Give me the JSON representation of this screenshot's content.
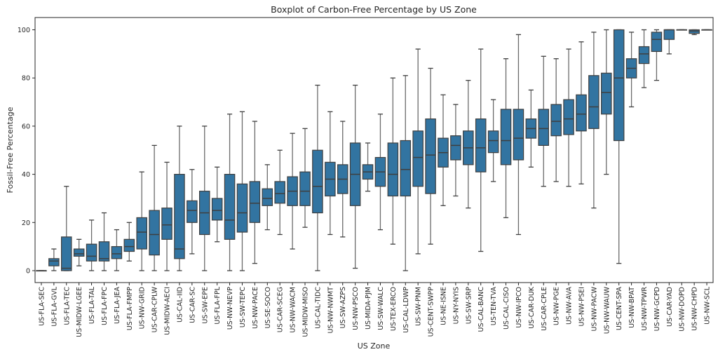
{
  "chart_data": {
    "type": "boxplot",
    "title": "Boxplot of Carbon-Free Percentage by US Zone",
    "xlabel": "US Zone",
    "ylabel": "Fossil-Free Percentage",
    "ylim": [
      -5,
      105
    ],
    "yticks": [
      0,
      20,
      40,
      60,
      80,
      100
    ],
    "grid": false,
    "box_color": "#3274a1",
    "line_color": "#3f3f3f",
    "categories": [
      "US-FLA-SEC",
      "US-FLA-GVL",
      "US-FLA-TEC",
      "US-MIDW-LGEE",
      "US-FLA-TAL",
      "US-FLA-FPC",
      "US-FLA-JEA",
      "US-FLA-FMPP",
      "US-NW-GRID",
      "US-CAR-CPLW",
      "US-MIDW-AECI",
      "US-CAL-IID",
      "US-CAR-SC",
      "US-SW-EPE",
      "US-FLA-FPL",
      "US-NW-NEVP",
      "US-SW-TEPC",
      "US-NW-PACE",
      "US-SE-SOCO",
      "US-CAR-SCEG",
      "US-NW-WACM",
      "US-MIDW-MISO",
      "US-CAL-TIDC",
      "US-NW-NWMT",
      "US-SW-AZPS",
      "US-NW-PSCO",
      "US-MIDA-PJM",
      "US-SW-WALC",
      "US-TEX-ERCO",
      "US-CAL-LDWP",
      "US-SW-PNM",
      "US-CENT-SWPP",
      "US-NE-ISNE",
      "US-NY-NYIS",
      "US-SW-SRP",
      "US-CAL-BANC",
      "US-TEN-TVA",
      "US-CAL-CISO",
      "US-NW-IPCO",
      "US-CAR-DUK",
      "US-CAR-CPLE",
      "US-NW-PGE",
      "US-NW-AVA",
      "US-NW-PSEI",
      "US-NW-PACW",
      "US-NW-WAUW",
      "US-CENT-SPA",
      "US-NW-BPAT",
      "US-NW-TPWR",
      "US-NW-GCPD",
      "US-CAR-YAD",
      "US-NW-DOPD",
      "US-NW-CHPD",
      "US-NW-SCL"
    ],
    "stats_order": [
      "whisker_low",
      "q1",
      "median",
      "q3",
      "whisker_high"
    ],
    "stats": [
      [
        0,
        0,
        0,
        0,
        0
      ],
      [
        0,
        2,
        4,
        5,
        9
      ],
      [
        0,
        0,
        1,
        14,
        35
      ],
      [
        2,
        6,
        7,
        9,
        13
      ],
      [
        0,
        4,
        6,
        11,
        21
      ],
      [
        0,
        4,
        5,
        12,
        24
      ],
      [
        0,
        5,
        7,
        10,
        17
      ],
      [
        4,
        8,
        10,
        13,
        20
      ],
      [
        0,
        9,
        16,
        22,
        41
      ],
      [
        0,
        6.5,
        15,
        25,
        52
      ],
      [
        0,
        13,
        19,
        26,
        45
      ],
      [
        0,
        5,
        9,
        40,
        60
      ],
      [
        7,
        20,
        25,
        29,
        42
      ],
      [
        0,
        15,
        24,
        33,
        60
      ],
      [
        12,
        21,
        25,
        30,
        43
      ],
      [
        0,
        13,
        21,
        40,
        65
      ],
      [
        0,
        16,
        24,
        36,
        66
      ],
      [
        3,
        20,
        28,
        37,
        62
      ],
      [
        17,
        27,
        30,
        34,
        44
      ],
      [
        15,
        28,
        32,
        37,
        50
      ],
      [
        9,
        27,
        33,
        39,
        57
      ],
      [
        18,
        27,
        33,
        41,
        59
      ],
      [
        0,
        24,
        35,
        50,
        77
      ],
      [
        15,
        31,
        38,
        45,
        66
      ],
      [
        14,
        32,
        38,
        44,
        62
      ],
      [
        1,
        27,
        40,
        53,
        77
      ],
      [
        33,
        38,
        41,
        44,
        53
      ],
      [
        17,
        35,
        41,
        47,
        65
      ],
      [
        11,
        31,
        40,
        53,
        80
      ],
      [
        0,
        31,
        42,
        54,
        81
      ],
      [
        7,
        35,
        47,
        58,
        92
      ],
      [
        11,
        32,
        48,
        63,
        84
      ],
      [
        27,
        43,
        49,
        55,
        73
      ],
      [
        31,
        46,
        52,
        56,
        69
      ],
      [
        26,
        44,
        51,
        58,
        79
      ],
      [
        8,
        41,
        51,
        63,
        92
      ],
      [
        37,
        49,
        54,
        58,
        71
      ],
      [
        22,
        44,
        54,
        67,
        88
      ],
      [
        15,
        46,
        55,
        67,
        98
      ],
      [
        43,
        55,
        59,
        63,
        75
      ],
      [
        35,
        52,
        59,
        67,
        89
      ],
      [
        37,
        56,
        62,
        69,
        88
      ],
      [
        35,
        56.5,
        63,
        71,
        92
      ],
      [
        36,
        58,
        65,
        73,
        95
      ],
      [
        26,
        59,
        68,
        81,
        99
      ],
      [
        40,
        65,
        74,
        82,
        100
      ],
      [
        3,
        54,
        80,
        100,
        100
      ],
      [
        68,
        80,
        84,
        88,
        99
      ],
      [
        76,
        86,
        90,
        93,
        100
      ],
      [
        79,
        91,
        96,
        99,
        100
      ],
      [
        90,
        96,
        100,
        100,
        100
      ],
      [
        100,
        100,
        100,
        100,
        100
      ],
      [
        98,
        98.5,
        99.5,
        100,
        100
      ],
      [
        100,
        100,
        100,
        100,
        100
      ]
    ]
  }
}
